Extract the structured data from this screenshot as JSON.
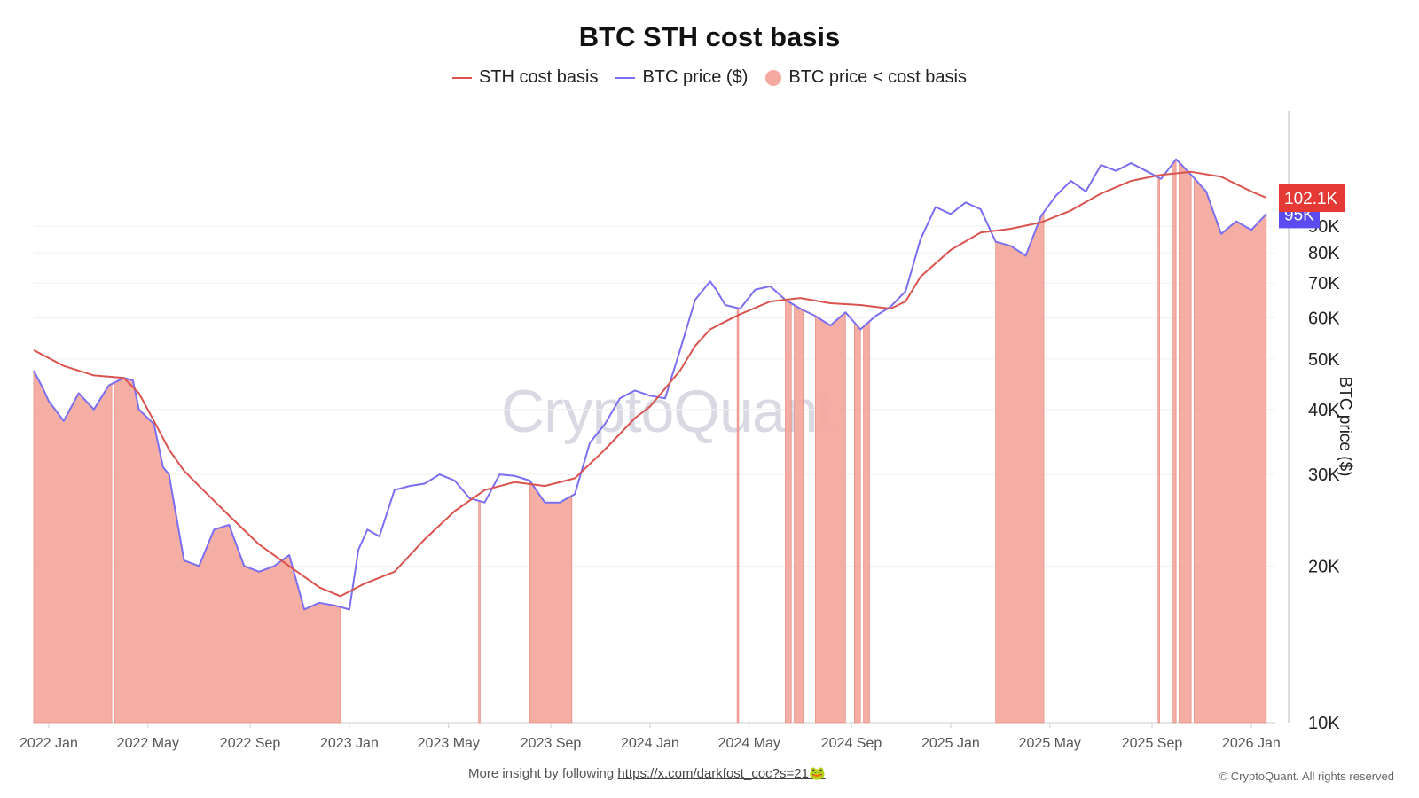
{
  "chart_data": {
    "type": "area",
    "title": "BTC STH cost basis",
    "legend": [
      {
        "label": "STH cost basis",
        "color": "#d9534f",
        "kind": "line"
      },
      {
        "label": "BTC price ($)",
        "color": "#7b6ef0",
        "kind": "line"
      },
      {
        "label": "BTC price < cost basis",
        "color": "#f4aaa0",
        "kind": "dot"
      }
    ],
    "ylabel": "BTC price ($)",
    "yscale": "log",
    "ylim": [
      10000,
      150000
    ],
    "yticks": [
      {
        "value": 10000,
        "label": "10K"
      },
      {
        "value": 20000,
        "label": "20K"
      },
      {
        "value": 30000,
        "label": "30K"
      },
      {
        "value": 40000,
        "label": "40K"
      },
      {
        "value": 50000,
        "label": "50K"
      },
      {
        "value": 60000,
        "label": "60K"
      },
      {
        "value": 70000,
        "label": "70K"
      },
      {
        "value": 80000,
        "label": "80K"
      },
      {
        "value": 90000,
        "label": "90K"
      }
    ],
    "xlim": [
      2021.95,
      2026.08
    ],
    "xticks": [
      {
        "value": 2022.0,
        "label": "2022 Jan"
      },
      {
        "value": 2022.33,
        "label": "2022 May"
      },
      {
        "value": 2022.67,
        "label": "2022 Sep"
      },
      {
        "value": 2023.0,
        "label": "2023 Jan"
      },
      {
        "value": 2023.33,
        "label": "2023 May"
      },
      {
        "value": 2023.67,
        "label": "2023 Sep"
      },
      {
        "value": 2024.0,
        "label": "2024 Jan"
      },
      {
        "value": 2024.33,
        "label": "2024 May"
      },
      {
        "value": 2024.67,
        "label": "2024 Sep"
      },
      {
        "value": 2025.0,
        "label": "2025 Jan"
      },
      {
        "value": 2025.33,
        "label": "2025 May"
      },
      {
        "value": 2025.67,
        "label": "2025 Sep"
      },
      {
        "value": 2026.0,
        "label": "2026 Jan"
      }
    ],
    "series": [
      {
        "name": "STH cost basis",
        "x": [
          2021.95,
          2022.05,
          2022.15,
          2022.25,
          2022.3,
          2022.35,
          2022.4,
          2022.45,
          2022.5,
          2022.6,
          2022.7,
          2022.8,
          2022.9,
          2022.97,
          2023.05,
          2023.15,
          2023.25,
          2023.35,
          2023.45,
          2023.55,
          2023.65,
          2023.75,
          2023.85,
          2023.95,
          2024.0,
          2024.1,
          2024.15,
          2024.2,
          2024.25,
          2024.3,
          2024.4,
          2024.5,
          2024.6,
          2024.7,
          2024.8,
          2024.85,
          2024.9,
          2025.0,
          2025.1,
          2025.2,
          2025.3,
          2025.4,
          2025.5,
          2025.6,
          2025.7,
          2025.8,
          2025.9,
          2026.0,
          2026.05
        ],
        "y": [
          52000,
          48500,
          46500,
          46000,
          43000,
          38000,
          33500,
          30500,
          28500,
          25000,
          22000,
          20000,
          18200,
          17500,
          18500,
          19500,
          22500,
          25500,
          28000,
          29000,
          28500,
          29500,
          33500,
          38500,
          40500,
          47500,
          53000,
          57000,
          59000,
          61000,
          64500,
          65500,
          64000,
          63500,
          62500,
          64500,
          72000,
          81000,
          87500,
          89000,
          91500,
          96500,
          104000,
          110000,
          113000,
          114500,
          112000,
          105000,
          102100
        ]
      },
      {
        "name": "BTC price ($)",
        "x": [
          2021.95,
          2021.98,
          2022.0,
          2022.05,
          2022.1,
          2022.15,
          2022.2,
          2022.25,
          2022.28,
          2022.3,
          2022.35,
          2022.38,
          2022.4,
          2022.45,
          2022.5,
          2022.55,
          2022.6,
          2022.65,
          2022.7,
          2022.75,
          2022.8,
          2022.85,
          2022.9,
          2022.95,
          2023.0,
          2023.03,
          2023.06,
          2023.1,
          2023.15,
          2023.2,
          2023.25,
          2023.3,
          2023.35,
          2023.4,
          2023.45,
          2023.5,
          2023.55,
          2023.6,
          2023.65,
          2023.7,
          2023.75,
          2023.8,
          2023.85,
          2023.9,
          2023.95,
          2024.0,
          2024.05,
          2024.1,
          2024.15,
          2024.2,
          2024.22,
          2024.25,
          2024.3,
          2024.35,
          2024.4,
          2024.45,
          2024.5,
          2024.55,
          2024.6,
          2024.65,
          2024.7,
          2024.75,
          2024.8,
          2024.85,
          2024.9,
          2024.95,
          2025.0,
          2025.05,
          2025.1,
          2025.15,
          2025.2,
          2025.25,
          2025.3,
          2025.35,
          2025.4,
          2025.45,
          2025.5,
          2025.55,
          2025.6,
          2025.65,
          2025.7,
          2025.75,
          2025.8,
          2025.85,
          2025.9,
          2025.95,
          2026.0,
          2026.05
        ],
        "y": [
          47500,
          44000,
          41500,
          38000,
          43000,
          40000,
          44500,
          46000,
          45500,
          40000,
          37500,
          31000,
          30000,
          20500,
          20000,
          23500,
          24000,
          20000,
          19500,
          20000,
          21000,
          16500,
          17000,
          16800,
          16500,
          21500,
          23500,
          22800,
          28000,
          28500,
          28800,
          30000,
          29200,
          27000,
          26500,
          30000,
          29800,
          29200,
          26500,
          26500,
          27500,
          34500,
          37500,
          42000,
          43500,
          42500,
          42000,
          52000,
          65000,
          70500,
          68000,
          63500,
          62500,
          68000,
          69000,
          65000,
          62500,
          60500,
          58000,
          61500,
          57000,
          60500,
          63000,
          67500,
          85000,
          98000,
          95000,
          100000,
          97000,
          84000,
          82500,
          79000,
          94000,
          103000,
          110000,
          105000,
          118000,
          115000,
          119000,
          115000,
          111000,
          121000,
          113000,
          105000,
          87000,
          92000,
          88500,
          95000
        ]
      },
      {
        "name": "BTC price < cost basis",
        "periods": [
          [
            2021.95,
            2022.21
          ],
          [
            2022.22,
            2022.97
          ],
          [
            2023.43,
            2023.435
          ],
          [
            2023.6,
            2023.74
          ],
          [
            2024.29,
            2024.295
          ],
          [
            2024.45,
            2024.47
          ],
          [
            2024.48,
            2024.51
          ],
          [
            2024.55,
            2024.65
          ],
          [
            2024.68,
            2024.7
          ],
          [
            2024.71,
            2024.73
          ],
          [
            2025.15,
            2025.31
          ],
          [
            2025.69,
            2025.695
          ],
          [
            2025.74,
            2025.75
          ],
          [
            2025.76,
            2025.8
          ],
          [
            2025.81,
            2026.05
          ]
        ]
      }
    ],
    "last_values": [
      {
        "series": "STH cost basis",
        "label": "102.1K",
        "value": 102100,
        "color": "#e53935"
      },
      {
        "series": "BTC price ($)",
        "label": "95K",
        "value": 95000,
        "color": "#5b4cf0"
      }
    ]
  },
  "watermark": "CryptoQuant",
  "footer": {
    "text": "More insight by following",
    "link": "https://x.com/darkfost_coc?s=21🐸",
    "copyright": "© CryptoQuant. All rights reserved"
  }
}
